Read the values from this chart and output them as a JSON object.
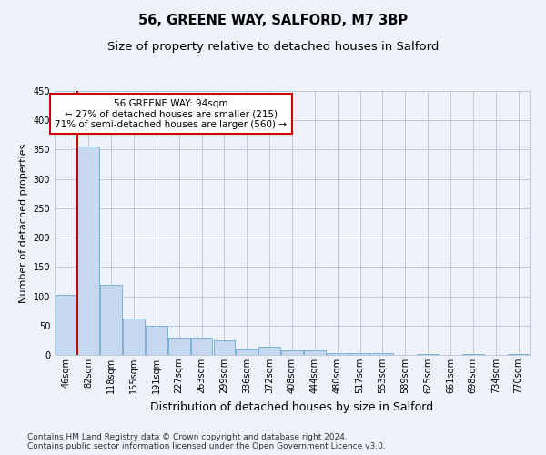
{
  "title1": "56, GREENE WAY, SALFORD, M7 3BP",
  "title2": "Size of property relative to detached houses in Salford",
  "xlabel": "Distribution of detached houses by size in Salford",
  "ylabel": "Number of detached properties",
  "bar_labels": [
    "46sqm",
    "82sqm",
    "118sqm",
    "155sqm",
    "191sqm",
    "227sqm",
    "263sqm",
    "299sqm",
    "336sqm",
    "372sqm",
    "408sqm",
    "444sqm",
    "480sqm",
    "517sqm",
    "553sqm",
    "589sqm",
    "625sqm",
    "661sqm",
    "698sqm",
    "734sqm",
    "770sqm"
  ],
  "bar_values": [
    103,
    355,
    120,
    62,
    50,
    30,
    30,
    25,
    10,
    14,
    7,
    7,
    3,
    3,
    3,
    0,
    2,
    0,
    2,
    0,
    2
  ],
  "bar_color": "#c5d8f0",
  "bar_edge_color": "#6aaad4",
  "vline_x_index": 1,
  "vline_color": "#cc0000",
  "annot_line1": "56 GREENE WAY: 94sqm",
  "annot_line2": "← 27% of detached houses are smaller (215)",
  "annot_line3": "71% of semi-detached houses are larger (560) →",
  "annotation_box_color": "white",
  "annotation_box_edge": "#cc0000",
  "ylim": [
    0,
    450
  ],
  "yticks": [
    0,
    50,
    100,
    150,
    200,
    250,
    300,
    350,
    400,
    450
  ],
  "bg_color": "#eef2fb",
  "grid_color": "#c0c8dc",
  "footer": "Contains HM Land Registry data © Crown copyright and database right 2024.\nContains public sector information licensed under the Open Government Licence v3.0.",
  "title1_fontsize": 10.5,
  "title2_fontsize": 9.5,
  "xlabel_fontsize": 9,
  "ylabel_fontsize": 8,
  "tick_fontsize": 7,
  "annot_fontsize": 7.5,
  "footer_fontsize": 6.5
}
